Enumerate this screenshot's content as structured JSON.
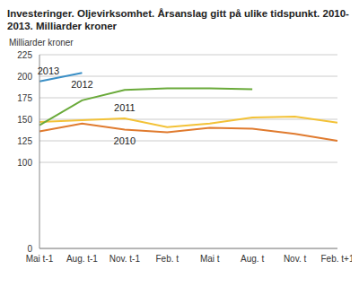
{
  "chart_data": {
    "type": "line",
    "title": "Investeringer. Oljevirksomhet. Årsanslag gitt på ulike tidspunkt. 2010-2013. Milliarder kroner",
    "y_label": "Milliarder kroner",
    "categories": [
      "Mai t-1",
      "Aug. t-1",
      "Nov. t-1",
      "Feb. t",
      "Mai t",
      "Aug. t",
      "Nov. t",
      "Feb. t+1"
    ],
    "series": [
      {
        "name": "2010",
        "color": "#e07b2f",
        "values": [
          136,
          145,
          138,
          135,
          140,
          139,
          133,
          125
        ]
      },
      {
        "name": "2011",
        "color": "#f3c237",
        "values": [
          147,
          149,
          151,
          141,
          145,
          152,
          153,
          146
        ]
      },
      {
        "name": "2012",
        "color": "#6aaa3a",
        "values": [
          143,
          172,
          184,
          186,
          186,
          185,
          null,
          null
        ]
      },
      {
        "name": "2013",
        "color": "#3a8fc6",
        "values": [
          194,
          204,
          null,
          null,
          null,
          null,
          null,
          null
        ]
      }
    ],
    "ylim": [
      0,
      225
    ],
    "yticks": [
      0,
      100,
      125,
      150,
      175,
      200,
      225
    ],
    "grid": true
  }
}
